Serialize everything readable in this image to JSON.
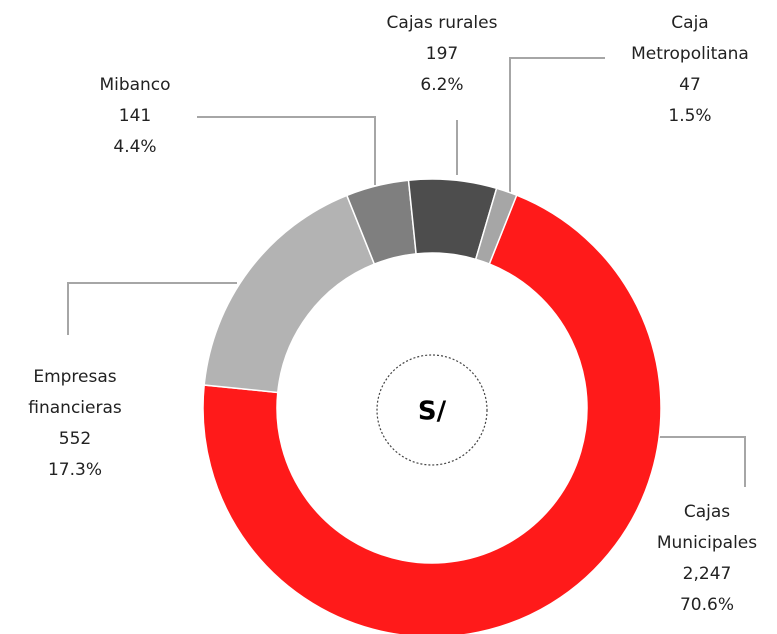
{
  "chart_data": {
    "type": "donut",
    "center_label": "S/",
    "categories": [
      "Cajas Municipales",
      "Empresas financieras",
      "Mibanco",
      "Cajas rurales",
      "Caja Metropolitana"
    ],
    "values": [
      2247,
      552,
      141,
      197,
      47
    ],
    "value_labels": [
      "2,247",
      "552",
      "141",
      "197",
      "47"
    ],
    "shares": [
      70.6,
      17.3,
      4.4,
      6.2,
      1.5
    ],
    "share_labels": [
      "70.6%",
      "17.3%",
      "4.4%",
      "6.2%",
      "1.5%"
    ],
    "colors": [
      "#ff1a1a",
      "#b3b3b3",
      "#7f7f7f",
      "#4d4d4d",
      "#a6a6a6"
    ]
  }
}
